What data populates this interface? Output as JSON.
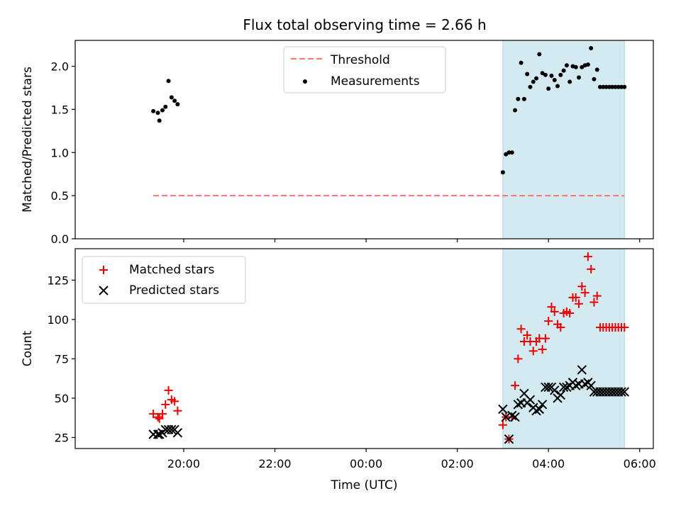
{
  "title": "Flux total observing time = 2.66 h",
  "colors": {
    "threshold": "#ff7070",
    "measurements": "#000000",
    "matched": "#ee0000",
    "predicted": "#000000",
    "band": "#d4eaf1",
    "band_edge": "#a9d3e4"
  },
  "chart_data": [
    {
      "type": "scatter",
      "ylabel": "Matched/Predicted stars",
      "ylim": [
        0,
        2.3
      ],
      "yticks": [
        0.0,
        0.5,
        1.0,
        1.5,
        2.0
      ],
      "ytick_labels": [
        "0.0",
        "0.5",
        "1.0",
        "1.5",
        "2.0"
      ],
      "xlim_hours": [
        17.62,
        30.3
      ],
      "legend_position": "top-center",
      "threshold": {
        "name": "Threshold",
        "value": 0.5,
        "x_from": "19:20",
        "x_to": "05:40"
      },
      "shaded_region": {
        "from": "03:00",
        "to": "05:40"
      },
      "series": [
        {
          "name": "Measurements",
          "marker": "dot",
          "x": [
            "19:20",
            "19:26",
            "19:28",
            "19:32",
            "19:36",
            "19:40",
            "19:44",
            "19:48",
            "19:52",
            "03:00",
            "03:04",
            "03:08",
            "03:12",
            "03:16",
            "03:20",
            "03:24",
            "03:28",
            "03:32",
            "03:36",
            "03:40",
            "03:44",
            "03:48",
            "03:52",
            "03:56",
            "04:00",
            "04:04",
            "04:08",
            "04:12",
            "04:16",
            "04:20",
            "04:24",
            "04:28",
            "04:32",
            "04:36",
            "04:40",
            "04:44",
            "04:48",
            "04:52",
            "04:56",
            "05:00",
            "05:04",
            "05:08",
            "05:12",
            "05:16",
            "05:20",
            "05:24",
            "05:28",
            "05:32",
            "05:36",
            "05:40"
          ],
          "y": [
            1.48,
            1.46,
            1.37,
            1.49,
            1.53,
            1.83,
            1.64,
            1.6,
            1.56,
            0.77,
            0.98,
            1.0,
            1.0,
            1.49,
            1.62,
            2.04,
            1.62,
            1.91,
            1.76,
            1.82,
            1.86,
            2.14,
            1.92,
            1.9,
            1.74,
            1.89,
            1.84,
            1.77,
            1.9,
            1.95,
            2.01,
            1.82,
            2.0,
            1.99,
            1.87,
            1.99,
            2.01,
            2.02,
            2.21,
            1.85,
            1.96,
            1.76,
            1.76,
            1.76,
            1.76,
            1.76,
            1.76,
            1.76,
            1.76,
            1.76
          ]
        }
      ]
    },
    {
      "type": "scatter",
      "xlabel": "Time (UTC)",
      "ylabel": "Count",
      "ylim": [
        18,
        145
      ],
      "yticks": [
        25,
        50,
        75,
        100,
        125
      ],
      "ytick_labels": [
        "25",
        "50",
        "75",
        "100",
        "125"
      ],
      "xlim_hours": [
        17.62,
        30.3
      ],
      "xticks_hours": [
        20,
        22,
        24,
        26,
        28,
        30
      ],
      "xtick_labels": [
        "20:00",
        "22:00",
        "00:00",
        "02:00",
        "04:00",
        "06:00"
      ],
      "legend_position": "top-left",
      "shaded_region": {
        "from": "03:00",
        "to": "05:40"
      },
      "series": [
        {
          "name": "Matched stars",
          "marker": "plus",
          "x": [
            "19:20",
            "19:26",
            "19:28",
            "19:32",
            "19:36",
            "19:40",
            "19:44",
            "19:48",
            "19:52",
            "03:00",
            "03:04",
            "03:08",
            "03:12",
            "03:16",
            "03:20",
            "03:24",
            "03:28",
            "03:32",
            "03:36",
            "03:40",
            "03:44",
            "03:48",
            "03:52",
            "03:56",
            "04:00",
            "04:04",
            "04:08",
            "04:12",
            "04:16",
            "04:20",
            "04:24",
            "04:28",
            "04:32",
            "04:36",
            "04:40",
            "04:44",
            "04:48",
            "04:52",
            "04:56",
            "05:00",
            "05:04",
            "05:08",
            "05:12",
            "05:16",
            "05:20",
            "05:24",
            "05:28",
            "05:32",
            "05:36",
            "05:40"
          ],
          "y": [
            40,
            38,
            37,
            40,
            46,
            55,
            49,
            48,
            42,
            33,
            38,
            24,
            38,
            58,
            75,
            94,
            86,
            90,
            86,
            80,
            86,
            88,
            81,
            88,
            99,
            108,
            105,
            97,
            95,
            104,
            105,
            104,
            114,
            114,
            110,
            121,
            117,
            140,
            132,
            111,
            115,
            95,
            95,
            95,
            95,
            95,
            95,
            95,
            95,
            95
          ]
        },
        {
          "name": "Predicted stars",
          "marker": "x",
          "x": [
            "19:20",
            "19:26",
            "19:28",
            "19:32",
            "19:36",
            "19:40",
            "19:44",
            "19:48",
            "19:52",
            "03:00",
            "03:04",
            "03:08",
            "03:12",
            "03:16",
            "03:20",
            "03:24",
            "03:28",
            "03:32",
            "03:36",
            "03:40",
            "03:44",
            "03:48",
            "03:52",
            "03:56",
            "04:00",
            "04:04",
            "04:08",
            "04:12",
            "04:16",
            "04:20",
            "04:24",
            "04:28",
            "04:32",
            "04:36",
            "04:40",
            "04:44",
            "04:48",
            "04:52",
            "04:56",
            "05:00",
            "05:04",
            "05:08",
            "05:12",
            "05:16",
            "05:20",
            "05:24",
            "05:28",
            "05:32",
            "05:36",
            "05:40"
          ],
          "y": [
            27,
            27,
            27,
            28,
            30,
            30,
            30,
            30,
            28,
            43,
            38,
            24,
            39,
            38,
            46,
            47,
            53,
            47,
            49,
            44,
            42,
            43,
            46,
            57,
            57,
            57,
            55,
            50,
            52,
            57,
            57,
            58,
            60,
            58,
            59,
            68,
            59,
            60,
            58,
            54,
            54,
            54,
            54,
            54,
            54,
            54,
            54,
            54,
            54,
            54
          ]
        }
      ]
    }
  ]
}
